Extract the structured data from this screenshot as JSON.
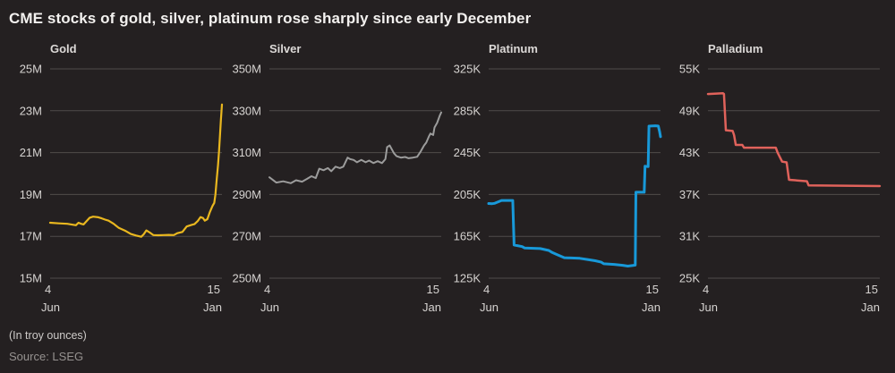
{
  "page": {
    "title": "CME stocks of gold, silver, platinum rose sharply since early December",
    "note": "(In troy ounces)",
    "source": "Source: LSEG"
  },
  "colors": {
    "background": "#242021",
    "grid": "#4f4b4a",
    "title_text": "#f3f1ef",
    "axis_text": "#d6d3d1",
    "panel_title_text": "#dcd9d7",
    "note_text": "#cdcac8",
    "source_text": "#969290",
    "gold": "#e9b71f",
    "silver": "#9c9c9c",
    "platinum": "#1899d9",
    "palladium": "#e0625b"
  },
  "chart_data": [
    {
      "type": "line",
      "title": "Gold",
      "color_key": "gold",
      "stroke_width": 2.2,
      "value_unit": "M troy ounces",
      "yticks": [
        "25M",
        "23M",
        "21M",
        "19M",
        "17M",
        "15M"
      ],
      "ymax": 25,
      "ymin": 15,
      "xticks": [
        {
          "day": "4",
          "month": "Jun"
        },
        {
          "day": "15",
          "month": "Jan"
        }
      ],
      "points": [
        [
          0,
          17.65
        ],
        [
          0.05,
          17.62
        ],
        [
          0.1,
          17.6
        ],
        [
          0.15,
          17.53
        ],
        [
          0.165,
          17.65
        ],
        [
          0.18,
          17.6
        ],
        [
          0.195,
          17.57
        ],
        [
          0.23,
          17.89
        ],
        [
          0.25,
          17.94
        ],
        [
          0.28,
          17.91
        ],
        [
          0.3,
          17.86
        ],
        [
          0.32,
          17.8
        ],
        [
          0.34,
          17.75
        ],
        [
          0.37,
          17.6
        ],
        [
          0.4,
          17.4
        ],
        [
          0.44,
          17.25
        ],
        [
          0.47,
          17.11
        ],
        [
          0.5,
          17.04
        ],
        [
          0.53,
          16.98
        ],
        [
          0.545,
          17.1
        ],
        [
          0.56,
          17.28
        ],
        [
          0.58,
          17.18
        ],
        [
          0.6,
          17.06
        ],
        [
          0.63,
          17.05
        ],
        [
          0.66,
          17.06
        ],
        [
          0.69,
          17.07
        ],
        [
          0.72,
          17.06
        ],
        [
          0.74,
          17.15
        ],
        [
          0.77,
          17.21
        ],
        [
          0.795,
          17.47
        ],
        [
          0.825,
          17.55
        ],
        [
          0.84,
          17.58
        ],
        [
          0.86,
          17.74
        ],
        [
          0.875,
          17.92
        ],
        [
          0.89,
          17.87
        ],
        [
          0.9,
          17.75
        ],
        [
          0.915,
          17.82
        ],
        [
          0.93,
          18.17
        ],
        [
          0.945,
          18.45
        ],
        [
          0.955,
          18.6
        ],
        [
          0.962,
          19.0
        ],
        [
          0.97,
          19.75
        ],
        [
          0.977,
          20.4
        ],
        [
          0.983,
          21.05
        ],
        [
          0.989,
          21.9
        ],
        [
          0.994,
          22.55
        ],
        [
          1,
          23.3
        ]
      ]
    },
    {
      "type": "line",
      "title": "Silver",
      "color_key": "silver",
      "stroke_width": 2,
      "value_unit": "M troy ounces",
      "yticks": [
        "350M",
        "330M",
        "310M",
        "290M",
        "270M",
        "250M"
      ],
      "ymax": 350,
      "ymin": 250,
      "xticks": [
        {
          "day": "4",
          "month": "Jun"
        },
        {
          "day": "15",
          "month": "Jan"
        }
      ],
      "points": [
        [
          0,
          298.2
        ],
        [
          0.04,
          295.7
        ],
        [
          0.08,
          296.3
        ],
        [
          0.125,
          295.4
        ],
        [
          0.155,
          296.8
        ],
        [
          0.19,
          296.1
        ],
        [
          0.22,
          297.5
        ],
        [
          0.245,
          298.7
        ],
        [
          0.27,
          297.8
        ],
        [
          0.29,
          302.3
        ],
        [
          0.315,
          301.6
        ],
        [
          0.34,
          302.6
        ],
        [
          0.36,
          301.1
        ],
        [
          0.385,
          303.3
        ],
        [
          0.41,
          302.6
        ],
        [
          0.43,
          303.3
        ],
        [
          0.455,
          307.6
        ],
        [
          0.47,
          306.9
        ],
        [
          0.49,
          306.5
        ],
        [
          0.51,
          305.4
        ],
        [
          0.535,
          306.5
        ],
        [
          0.56,
          305.4
        ],
        [
          0.58,
          306.2
        ],
        [
          0.605,
          305
        ],
        [
          0.63,
          305.9
        ],
        [
          0.655,
          305
        ],
        [
          0.675,
          306.9
        ],
        [
          0.685,
          312.6
        ],
        [
          0.7,
          313.4
        ],
        [
          0.725,
          309.7
        ],
        [
          0.74,
          308.3
        ],
        [
          0.765,
          307.6
        ],
        [
          0.79,
          307.9
        ],
        [
          0.81,
          307.3
        ],
        [
          0.835,
          307.6
        ],
        [
          0.86,
          308
        ],
        [
          0.88,
          310.5
        ],
        [
          0.9,
          313.4
        ],
        [
          0.913,
          314.8
        ],
        [
          0.928,
          317.7
        ],
        [
          0.937,
          319.1
        ],
        [
          0.953,
          318.4
        ],
        [
          0.961,
          322
        ],
        [
          0.976,
          324.2
        ],
        [
          0.992,
          327.8
        ],
        [
          1,
          329.2
        ]
      ]
    },
    {
      "type": "line",
      "title": "Platinum",
      "color_key": "platinum",
      "stroke_width": 3,
      "value_unit": "K troy ounces",
      "yticks": [
        "325K",
        "285K",
        "245K",
        "205K",
        "165K",
        "125K"
      ],
      "ymax": 325,
      "ymin": 125,
      "xticks": [
        {
          "day": "4",
          "month": "Jun"
        },
        {
          "day": "15",
          "month": "Jan"
        }
      ],
      "points": [
        [
          0,
          196.4
        ],
        [
          0.02,
          196.2
        ],
        [
          0.035,
          196.5
        ],
        [
          0.075,
          199.3
        ],
        [
          0.14,
          199.3
        ],
        [
          0.148,
          156.7
        ],
        [
          0.195,
          155.2
        ],
        [
          0.21,
          153.8
        ],
        [
          0.3,
          153.3
        ],
        [
          0.35,
          151.5
        ],
        [
          0.37,
          149.5
        ],
        [
          0.39,
          148.1
        ],
        [
          0.44,
          144.6
        ],
        [
          0.53,
          144
        ],
        [
          0.575,
          142.9
        ],
        [
          0.62,
          141.7
        ],
        [
          0.655,
          140.3
        ],
        [
          0.67,
          138.8
        ],
        [
          0.73,
          138.2
        ],
        [
          0.78,
          137.3
        ],
        [
          0.81,
          136.5
        ],
        [
          0.845,
          137.3
        ],
        [
          0.853,
          137.5
        ],
        [
          0.857,
          207.1
        ],
        [
          0.905,
          207.1
        ],
        [
          0.91,
          232
        ],
        [
          0.928,
          231.6
        ],
        [
          0.933,
          270.3
        ],
        [
          0.97,
          270.6
        ],
        [
          0.987,
          270.4
        ],
        [
          0.995,
          265
        ],
        [
          1,
          260.2
        ]
      ]
    },
    {
      "type": "line",
      "title": "Palladium",
      "color_key": "palladium",
      "stroke_width": 2.5,
      "value_unit": "K troy ounces",
      "yticks": [
        "55K",
        "49K",
        "43K",
        "37K",
        "31K",
        "25K"
      ],
      "ymax": 55,
      "ymin": 25,
      "xticks": [
        {
          "day": "4",
          "month": "Jun"
        },
        {
          "day": "15",
          "month": "Jan"
        }
      ],
      "points": [
        [
          0,
          51.4
        ],
        [
          0.088,
          51.5
        ],
        [
          0.093,
          51.4
        ],
        [
          0.104,
          46.2
        ],
        [
          0.144,
          46.1
        ],
        [
          0.152,
          45.5
        ],
        [
          0.162,
          44.1
        ],
        [
          0.2,
          44.1
        ],
        [
          0.21,
          43.7
        ],
        [
          0.395,
          43.7
        ],
        [
          0.405,
          43
        ],
        [
          0.432,
          41.7
        ],
        [
          0.458,
          41.6
        ],
        [
          0.472,
          39.1
        ],
        [
          0.576,
          38.9
        ],
        [
          0.586,
          38.3
        ],
        [
          1,
          38.2
        ]
      ]
    }
  ]
}
